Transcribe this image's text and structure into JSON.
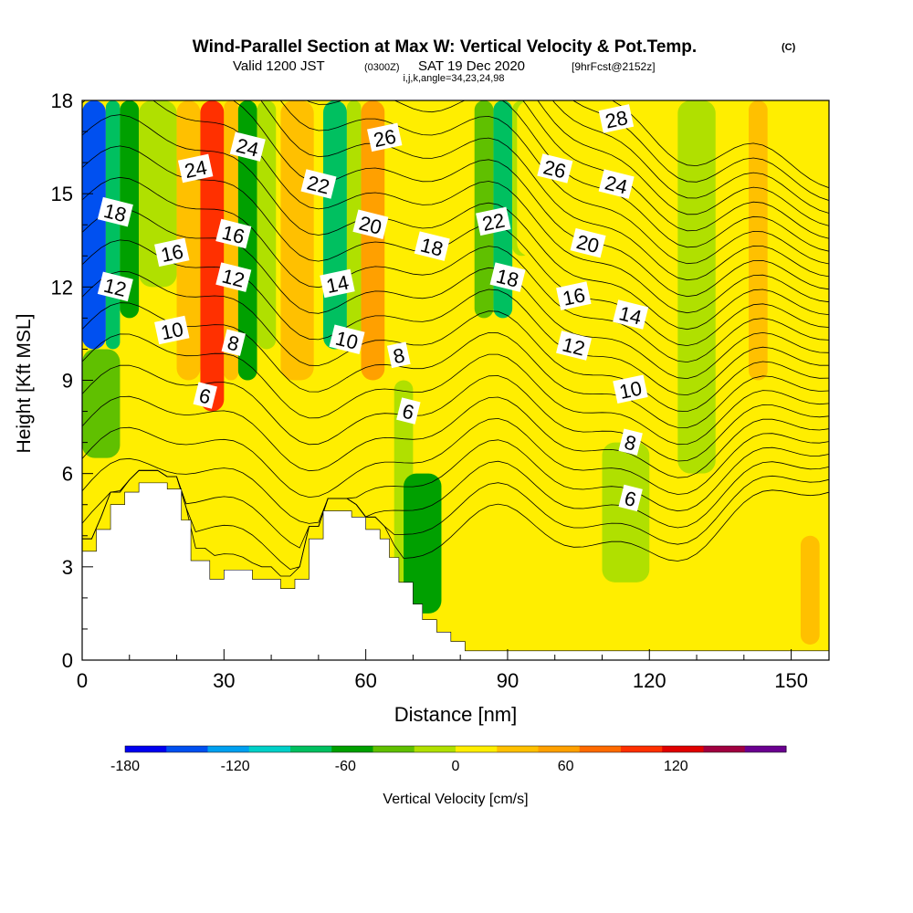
{
  "chart_data": {
    "type": "heatmap",
    "title": "Wind-Parallel Section at Max W: Vertical Velocity & Pot.Temp.",
    "title_mark": "(C)",
    "subtitle_main": "Valid 1200 JST",
    "subtitle_zulu": "(0300Z)",
    "subtitle_date": "SAT 19 Dec 2020",
    "subtitle_fcst": "[9hrFcst@2152z]",
    "subtitle_indices": "i,j,k,angle=34,23,24,98",
    "xlabel": "Distance [nm]",
    "ylabel": "Height [Kft MSL]",
    "xlim": [
      0,
      158
    ],
    "ylim": [
      0,
      18
    ],
    "x_ticks": [
      "0",
      "30",
      "60",
      "90",
      "120",
      "150"
    ],
    "y_ticks": [
      "0",
      "3",
      "6",
      "9",
      "12",
      "15",
      "18"
    ],
    "colorbar": {
      "label": "Vertical Velocity [cm/s]",
      "ticks": [
        "-180",
        "-120",
        "-60",
        "0",
        "60",
        "120"
      ],
      "colors": [
        "#0000f0",
        "#0050f0",
        "#00a0f0",
        "#00d0c8",
        "#00c060",
        "#00a000",
        "#60c000",
        "#b0e000",
        "#ffee00",
        "#ffc000",
        "#ffa000",
        "#ff6a00",
        "#ff3000",
        "#e00000",
        "#a00040",
        "#6a0090"
      ]
    },
    "vertical_velocity_bands": [
      {
        "x0": 0,
        "x1": 5,
        "y0": 10,
        "y1": 18,
        "w": -150
      },
      {
        "x0": 5,
        "x1": 8,
        "y0": 10,
        "y1": 18,
        "w": -90
      },
      {
        "x0": 8,
        "x1": 12,
        "y0": 11,
        "y1": 18,
        "w": -50
      },
      {
        "x0": 0,
        "x1": 8,
        "y0": 6.5,
        "y1": 10,
        "w": -30
      },
      {
        "x0": 12,
        "x1": 20,
        "y0": 12,
        "y1": 18,
        "w": -20
      },
      {
        "x0": 20,
        "x1": 25,
        "y0": 9,
        "y1": 18,
        "w": 40
      },
      {
        "x0": 25,
        "x1": 30,
        "y0": 8,
        "y1": 18,
        "w": 90
      },
      {
        "x0": 30,
        "x1": 33,
        "y0": 9,
        "y1": 18,
        "w": 40
      },
      {
        "x0": 33,
        "x1": 37,
        "y0": 9,
        "y1": 18,
        "w": -50
      },
      {
        "x0": 37,
        "x1": 41,
        "y0": 10,
        "y1": 18,
        "w": -20
      },
      {
        "x0": 42,
        "x1": 49,
        "y0": 9,
        "y1": 18,
        "w": 40
      },
      {
        "x0": 51,
        "x1": 56,
        "y0": 10,
        "y1": 18,
        "w": -70
      },
      {
        "x0": 56,
        "x1": 59,
        "y0": 10,
        "y1": 18,
        "w": -20
      },
      {
        "x0": 59,
        "x1": 64,
        "y0": 9,
        "y1": 18,
        "w": 60
      },
      {
        "x0": 64,
        "x1": 67,
        "y0": 9,
        "y1": 18,
        "w": 20
      },
      {
        "x0": 66,
        "x1": 70,
        "y0": 0.5,
        "y1": 9,
        "w": -20
      },
      {
        "x0": 68,
        "x1": 76,
        "y0": 1.5,
        "y1": 6,
        "w": -60
      },
      {
        "x0": 79,
        "x1": 87,
        "y0": 0.5,
        "y1": 8,
        "w": 20
      },
      {
        "x0": 83,
        "x1": 87,
        "y0": 11,
        "y1": 18,
        "w": -30
      },
      {
        "x0": 87,
        "x1": 91,
        "y0": 11,
        "y1": 18,
        "w": -70
      },
      {
        "x0": 91,
        "x1": 95,
        "y0": 13,
        "y1": 18,
        "w": -20
      },
      {
        "x0": 92,
        "x1": 158,
        "y0": 13,
        "y1": 18,
        "w": 20
      },
      {
        "x0": 110,
        "x1": 120,
        "y0": 2.5,
        "y1": 7,
        "w": -20
      },
      {
        "x0": 126,
        "x1": 134,
        "y0": 6,
        "y1": 18,
        "w": -20
      },
      {
        "x0": 128,
        "x1": 140,
        "y0": 0.5,
        "y1": 6,
        "w": 20
      },
      {
        "x0": 136,
        "x1": 140,
        "y0": 6,
        "y1": 18,
        "w": 20
      },
      {
        "x0": 141,
        "x1": 145,
        "y0": 9,
        "y1": 18,
        "w": 40
      },
      {
        "x0": 152,
        "x1": 156,
        "y0": 0.5,
        "y1": 4,
        "w": 40
      },
      {
        "x0": 96,
        "x1": 104,
        "y0": 0.5,
        "y1": 3,
        "w": 20
      }
    ],
    "terrain_height_kft": [
      {
        "x": 0,
        "h": 3.5
      },
      {
        "x": 3,
        "h": 4.2
      },
      {
        "x": 6,
        "h": 5.0
      },
      {
        "x": 9,
        "h": 5.4
      },
      {
        "x": 12,
        "h": 5.7
      },
      {
        "x": 18,
        "h": 5.5
      },
      {
        "x": 21,
        "h": 4.5
      },
      {
        "x": 23,
        "h": 3.2
      },
      {
        "x": 27,
        "h": 2.6
      },
      {
        "x": 30,
        "h": 2.9
      },
      {
        "x": 36,
        "h": 2.6
      },
      {
        "x": 42,
        "h": 2.3
      },
      {
        "x": 45,
        "h": 2.6
      },
      {
        "x": 48,
        "h": 3.9
      },
      {
        "x": 51,
        "h": 4.8
      },
      {
        "x": 57,
        "h": 4.6
      },
      {
        "x": 60,
        "h": 4.2
      },
      {
        "x": 63,
        "h": 3.9
      },
      {
        "x": 65,
        "h": 3.3
      },
      {
        "x": 67,
        "h": 2.5
      },
      {
        "x": 70,
        "h": 1.8
      },
      {
        "x": 72,
        "h": 1.3
      },
      {
        "x": 75,
        "h": 0.9
      },
      {
        "x": 78,
        "h": 0.6
      },
      {
        "x": 81,
        "h": 0.3
      },
      {
        "x": 85,
        "h": 0.3
      },
      {
        "x": 158,
        "h": 0.3
      }
    ],
    "theta_contour_labels": [
      {
        "text": "24",
        "x": 24,
        "y": 15.8
      },
      {
        "text": "24",
        "x": 35,
        "y": 16.5
      },
      {
        "text": "18",
        "x": 7,
        "y": 14.4
      },
      {
        "text": "16",
        "x": 19,
        "y": 13.1
      },
      {
        "text": "16",
        "x": 32,
        "y": 13.7
      },
      {
        "text": "22",
        "x": 50,
        "y": 15.3
      },
      {
        "text": "26",
        "x": 64,
        "y": 16.8
      },
      {
        "text": "20",
        "x": 61,
        "y": 14.0
      },
      {
        "text": "18",
        "x": 74,
        "y": 13.3
      },
      {
        "text": "14",
        "x": 54,
        "y": 12.1
      },
      {
        "text": "12",
        "x": 7,
        "y": 12.0
      },
      {
        "text": "12",
        "x": 32,
        "y": 12.3
      },
      {
        "text": "10",
        "x": 19,
        "y": 10.6
      },
      {
        "text": "8",
        "x": 32,
        "y": 10.2
      },
      {
        "text": "10",
        "x": 56,
        "y": 10.3
      },
      {
        "text": "8",
        "x": 67,
        "y": 9.8
      },
      {
        "text": "6",
        "x": 26,
        "y": 8.5
      },
      {
        "text": "6",
        "x": 69,
        "y": 8.0
      },
      {
        "text": "22",
        "x": 87,
        "y": 14.1
      },
      {
        "text": "18",
        "x": 90,
        "y": 12.3
      },
      {
        "text": "26",
        "x": 100,
        "y": 15.8
      },
      {
        "text": "28",
        "x": 113,
        "y": 17.4
      },
      {
        "text": "24",
        "x": 113,
        "y": 15.3
      },
      {
        "text": "20",
        "x": 107,
        "y": 13.4
      },
      {
        "text": "16",
        "x": 104,
        "y": 11.7
      },
      {
        "text": "14",
        "x": 116,
        "y": 11.1
      },
      {
        "text": "12",
        "x": 104,
        "y": 10.1
      },
      {
        "text": "10",
        "x": 116,
        "y": 8.7
      },
      {
        "text": "8",
        "x": 116,
        "y": 7.0
      },
      {
        "text": "6",
        "x": 116,
        "y": 5.2
      }
    ],
    "grid": false,
    "legend": "bottom colorbar"
  }
}
